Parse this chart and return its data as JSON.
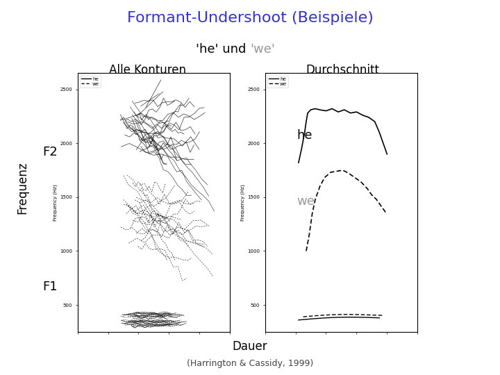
{
  "title_main": "Formant-Undershoot (Beispiele)",
  "title_main_color": "#3333cc",
  "subtitle_black": "'he' und ",
  "subtitle_gray": "'we'",
  "subtitle_black_color": "#000000",
  "subtitle_gray_color": "#999999",
  "label_left": "Alle Konturen",
  "label_right": "Durchschnitt",
  "xlabel": "Dauer",
  "ylabel_outer": "Frequenz",
  "caption": "(Harrington & Cassidy, 1999)",
  "yaxis_inner_label": "Frequency (Hz)",
  "ylim": [
    250,
    2650
  ],
  "yticks": [
    500,
    1000,
    1500,
    2000,
    2500
  ],
  "F2_label": "F2",
  "F1_label": "F1",
  "he_label": "he",
  "we_label": "we",
  "he_color": "#000000",
  "we_color": "#999999",
  "background": "#ffffff",
  "panel_border_color": "#000000"
}
